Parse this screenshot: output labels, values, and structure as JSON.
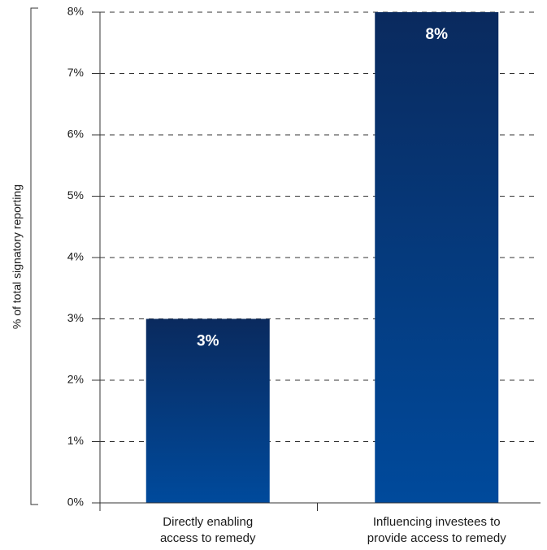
{
  "chart_data": {
    "type": "bar",
    "categories": [
      [
        "Directly enabling",
        "access to remedy"
      ],
      [
        "Influencing investees to",
        "provide access to remedy"
      ]
    ],
    "values": [
      3,
      8
    ],
    "data_labels": [
      "3%",
      "8%"
    ],
    "ylabel": "% of total signatory reporting",
    "xlabel": "",
    "title": "",
    "ylim": [
      0,
      8
    ],
    "yticks": [
      0,
      1,
      2,
      3,
      4,
      5,
      6,
      7,
      8
    ],
    "ytick_labels": [
      "0%",
      "1%",
      "2%",
      "3%",
      "4%",
      "5%",
      "6%",
      "7%",
      "8%"
    ],
    "grid": "horizontal dashed",
    "legend": "none",
    "colors": {
      "bar_top": "#0a2a5e",
      "bar_bottom": "#004a9c"
    }
  }
}
